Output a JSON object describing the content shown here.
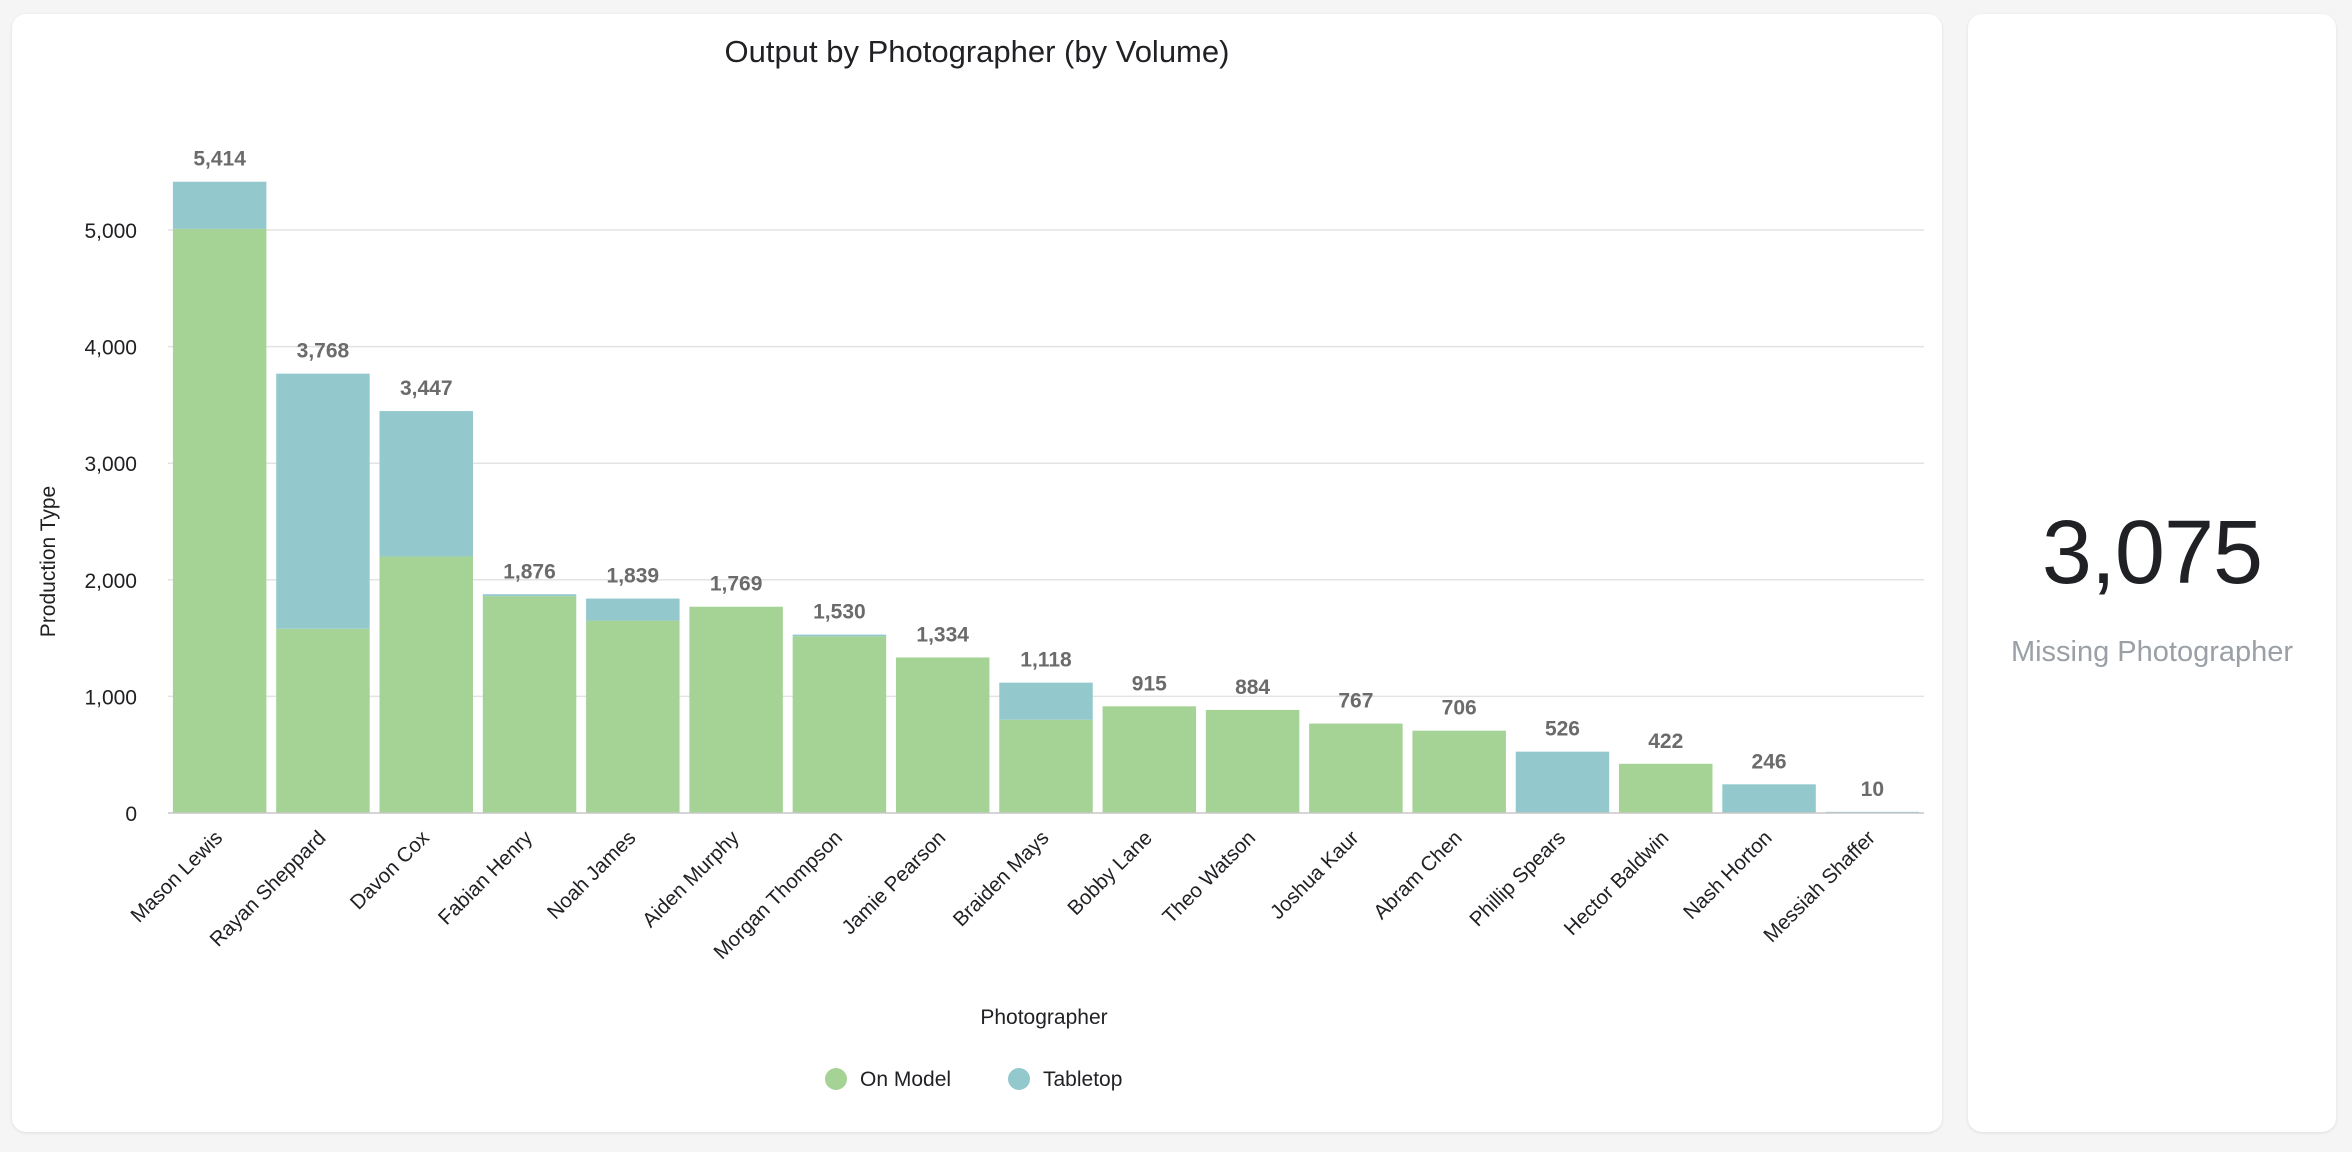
{
  "chart_data": {
    "type": "bar",
    "stacked": true,
    "title": "Output by Photographer (by Volume)",
    "xlabel": "Photographer",
    "ylabel": "Production Type",
    "ylim": [
      0,
      5500
    ],
    "yticks": [
      0,
      1000,
      2000,
      3000,
      4000,
      5000
    ],
    "ytick_labels": [
      "0",
      "1,000",
      "2,000",
      "3,000",
      "4,000",
      "5,000"
    ],
    "grid": true,
    "legend_position": "bottom",
    "categories": [
      "Mason Lewis",
      "Rayan Sheppard",
      "Davon Cox",
      "Fabian Henry",
      "Noah James",
      "Aiden Murphy",
      "Morgan Thompson",
      "Jamie Pearson",
      "Braiden Mays",
      "Bobby Lane",
      "Theo Watson",
      "Joshua Kaur",
      "Abram Chen",
      "Phillip Spears",
      "Hector Baldwin",
      "Nash Horton",
      "Messiah Shaffer"
    ],
    "series": [
      {
        "name": "On Model",
        "color": "#a5d395",
        "values": [
          5010,
          1580,
          2200,
          1860,
          1650,
          1769,
          1515,
          1334,
          800,
          915,
          884,
          767,
          706,
          0,
          422,
          0,
          0
        ]
      },
      {
        "name": "Tabletop",
        "color": "#93c8cd",
        "values": [
          404,
          2188,
          1247,
          16,
          189,
          0,
          15,
          0,
          318,
          0,
          0,
          0,
          0,
          526,
          0,
          246,
          10
        ]
      }
    ],
    "totals": [
      5414,
      3768,
      3447,
      1876,
      1839,
      1769,
      1530,
      1334,
      1118,
      915,
      884,
      767,
      706,
      526,
      422,
      246,
      10
    ],
    "total_labels": [
      "5,414",
      "3,768",
      "3,447",
      "1,876",
      "1,839",
      "1,769",
      "1,530",
      "1,334",
      "1,118",
      "915",
      "884",
      "767",
      "706",
      "526",
      "422",
      "246",
      "10"
    ]
  },
  "kpi": {
    "value": "3,075",
    "label": "Missing Photographer"
  }
}
